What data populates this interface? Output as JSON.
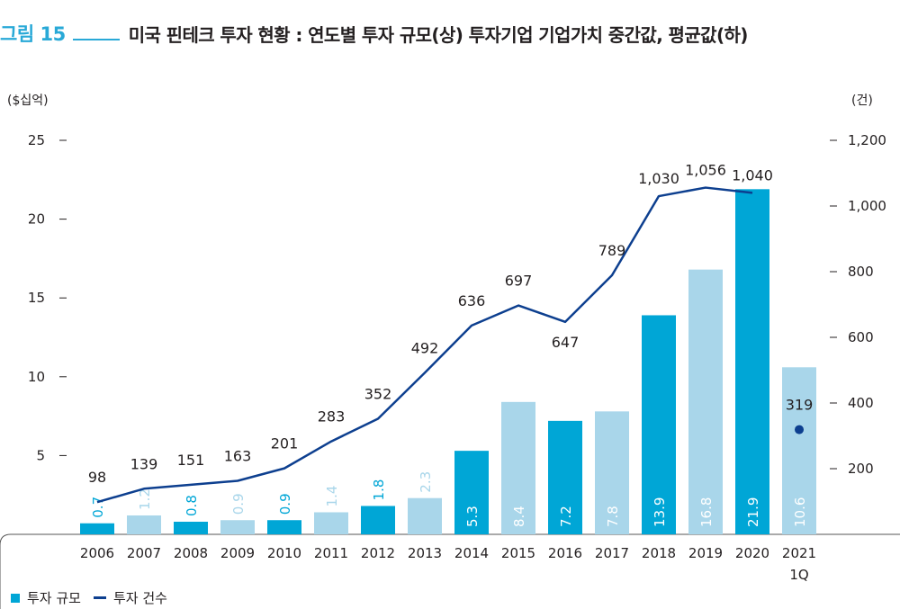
{
  "header": {
    "figure_label": "그림 15",
    "title": "미국 핀테크 투자 현황 : 연도별 투자 규모(상) 투자기업 기업가치 중간값, 평균값(하)"
  },
  "legend": {
    "bars_label": "투자 규모",
    "line_label": "투자 건수"
  },
  "colors": {
    "bar_dark": "#00a6d6",
    "bar_light": "#a9d6ea",
    "line": "#0d3f8f",
    "title_accent": "#29a9d7"
  },
  "chart_data": {
    "type": "bar",
    "categories": [
      "2006",
      "2007",
      "2008",
      "2009",
      "2010",
      "2011",
      "2012",
      "2013",
      "2014",
      "2015",
      "2016",
      "2017",
      "2018",
      "2019",
      "2020",
      "2021\n1Q"
    ],
    "y_left": {
      "label": "($십억)",
      "ticks": [
        "5",
        "10",
        "15",
        "20",
        "25"
      ],
      "tick_values": [
        5,
        10,
        15,
        20,
        25
      ],
      "ylim": [
        0,
        25
      ]
    },
    "y_right": {
      "label": "(건)",
      "ticks": [
        "200",
        "400",
        "600",
        "800",
        "1,000",
        "1,200"
      ],
      "tick_values": [
        200,
        400,
        600,
        800,
        1000,
        1200
      ],
      "ylim": [
        0,
        1200
      ]
    },
    "series": [
      {
        "name": "투자 규모",
        "type": "bar",
        "axis": "left",
        "values": [
          0.7,
          1.2,
          0.8,
          0.9,
          0.9,
          1.4,
          1.8,
          2.3,
          5.3,
          8.4,
          7.2,
          7.8,
          13.9,
          16.8,
          21.9,
          10.6
        ],
        "labels": [
          "0.7",
          "1.2",
          "0.8",
          "0.9",
          "0.9",
          "1.4",
          "1.8",
          "2.3",
          "5.3",
          "8.4",
          "7.2",
          "7.8",
          "13.9",
          "16.8",
          "21.9",
          "10.6"
        ],
        "shade": [
          "dark",
          "light",
          "dark",
          "light",
          "dark",
          "light",
          "dark",
          "light",
          "dark",
          "light",
          "dark",
          "light",
          "dark",
          "light",
          "dark",
          "light"
        ]
      },
      {
        "name": "투자 건수",
        "type": "line",
        "axis": "right",
        "values": [
          98,
          139,
          151,
          163,
          201,
          283,
          352,
          492,
          636,
          697,
          647,
          789,
          1030,
          1056,
          1040,
          null
        ],
        "labels": [
          "98",
          "139",
          "151",
          "163",
          "201",
          "283",
          "352",
          "492",
          "636",
          "697",
          "647",
          "789",
          "1,030",
          "1,056",
          "1,040",
          ""
        ]
      },
      {
        "name": "투자 건수",
        "type": "marker",
        "axis": "right",
        "index": 15,
        "value": 319,
        "label": "319"
      }
    ],
    "grid": false,
    "legend_position": "bottom-left"
  }
}
